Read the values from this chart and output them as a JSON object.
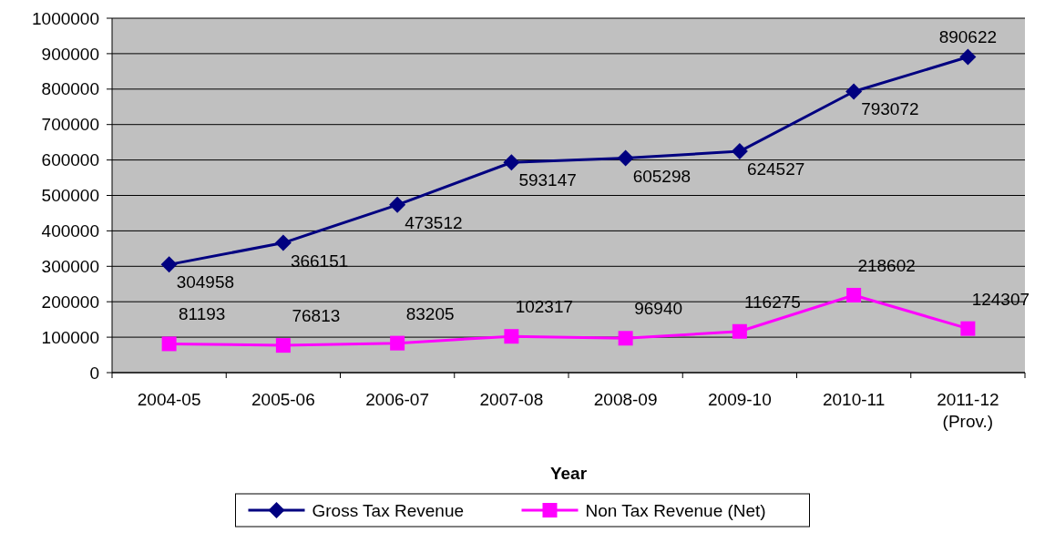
{
  "chart_data": {
    "type": "line",
    "xlabel": "Year",
    "categories": [
      "2004-05",
      "2005-06",
      "2006-07",
      "2007-08",
      "2008-09",
      "2009-10",
      "2010-11",
      "2011-12 (Prov.)"
    ],
    "series": [
      {
        "name": "Gross Tax Revenue",
        "color": "#000080",
        "marker": "diamond",
        "values": [
          304958,
          366151,
          473512,
          593147,
          605298,
          624527,
          793072,
          890622
        ]
      },
      {
        "name": "Non Tax Revenue (Net)",
        "color": "#ff00ff",
        "marker": "square",
        "values": [
          81193,
          76813,
          83205,
          102317,
          96940,
          116275,
          218602,
          124307
        ]
      }
    ],
    "ylim": [
      0,
      1000000
    ],
    "yticks": [
      0,
      100000,
      200000,
      300000,
      400000,
      500000,
      600000,
      700000,
      800000,
      900000,
      1000000
    ],
    "grid": "y",
    "legend": "bottom",
    "data_labels": true
  }
}
